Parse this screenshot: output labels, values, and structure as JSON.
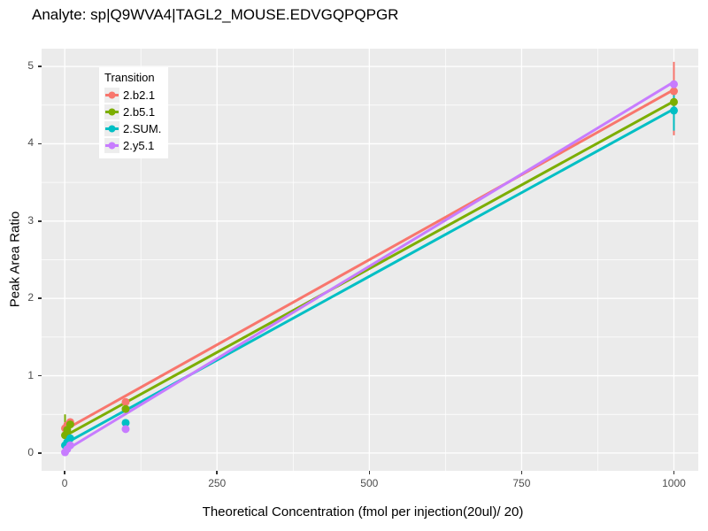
{
  "page": {
    "background": "#ffffff"
  },
  "chart_data": {
    "type": "scatter",
    "title": "Analyte: sp|Q9WVA4|TAGL2_MOUSE.EDVGQPQPGR",
    "xlabel": "Theoretical Concentration (fmol per injection(20ul)/ 20)",
    "ylabel": "Peak Area Ratio",
    "xlim": [
      -38,
      1040
    ],
    "ylim": [
      -0.23,
      5.23
    ],
    "x_ticks": [
      0,
      250,
      500,
      750,
      1000
    ],
    "y_ticks": [
      0,
      1,
      2,
      3,
      4,
      5
    ],
    "x_minor_ticks": [
      125,
      375,
      625,
      875
    ],
    "y_minor_ticks": [
      0.5,
      1.5,
      2.5,
      3.5,
      4.5
    ],
    "grid": true,
    "legend": {
      "title": "Transition",
      "position": "top-left-inside"
    },
    "style": {
      "panel_bg": "#EBEBEB",
      "grid_color": "#FFFFFF",
      "tick_label_color": "#4D4D4D",
      "tick_mark_color": "#333333",
      "legend_key_bg": "#EDEDED"
    },
    "series": [
      {
        "name": "2.b2.1",
        "color": "#F8766D",
        "trend_line": {
          "x": [
            0,
            1000
          ],
          "y": [
            0.3,
            4.7
          ]
        },
        "points": {
          "x": [
            0.5,
            4,
            9,
            100,
            1000
          ],
          "y": [
            0.32,
            0.36,
            0.4,
            0.66,
            4.68
          ]
        },
        "error_bars": [
          {
            "x": 1000,
            "y_min": 4.11,
            "y_max": 5.06
          }
        ]
      },
      {
        "name": "2.b5.1",
        "color": "#7CAE00",
        "trend_line": {
          "x": [
            0,
            1000
          ],
          "y": [
            0.22,
            4.55
          ]
        },
        "points": {
          "x": [
            0.5,
            4,
            9,
            100,
            1000
          ],
          "y": [
            0.23,
            0.3,
            0.37,
            0.57,
            4.54
          ]
        },
        "error_bars": [
          {
            "x": 0.5,
            "y_min": 0.23,
            "y_max": 0.5
          }
        ]
      },
      {
        "name": "2.SUM.",
        "color": "#00BFC4",
        "trend_line": {
          "x": [
            0,
            1000
          ],
          "y": [
            0.12,
            4.45
          ]
        },
        "points": {
          "x": [
            0.5,
            4,
            9,
            100,
            1000
          ],
          "y": [
            0.1,
            0.14,
            0.19,
            0.39,
            4.43
          ]
        },
        "error_bars": [
          {
            "x": 1000,
            "y_min": 4.17,
            "y_max": 4.7
          }
        ]
      },
      {
        "name": "2.y5.1",
        "color": "#C77CFF",
        "trend_line": {
          "x": [
            0,
            1000
          ],
          "y": [
            0.03,
            4.8
          ]
        },
        "points": {
          "x": [
            0.5,
            4,
            9,
            100,
            1000
          ],
          "y": [
            0.01,
            0.05,
            0.1,
            0.31,
            4.77
          ]
        },
        "error_bars": []
      }
    ]
  }
}
